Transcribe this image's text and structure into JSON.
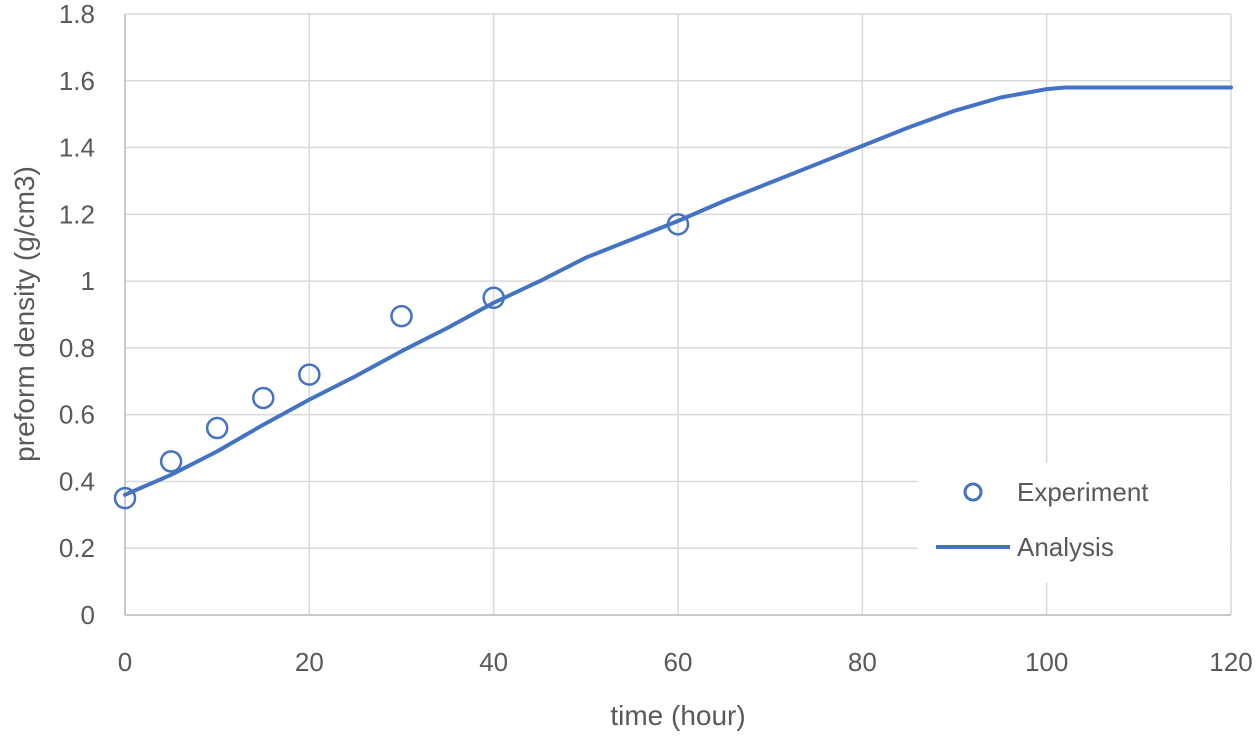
{
  "chart_data": {
    "type": "scatter",
    "title": "",
    "xlabel": "time (hour)",
    "ylabel": "preform density (g/cm3)",
    "xlim": [
      0,
      120
    ],
    "ylim": [
      0,
      1.8
    ],
    "x_ticks": [
      0,
      20,
      40,
      60,
      80,
      100,
      120
    ],
    "y_ticks": [
      0,
      0.2,
      0.4,
      0.6,
      0.8,
      1,
      1.2,
      1.4,
      1.6,
      1.8
    ],
    "x_tick_labels": [
      "0",
      "20",
      "40",
      "60",
      "80",
      "100",
      "120"
    ],
    "y_tick_labels": [
      "0",
      "0.2",
      "0.4",
      "0.6",
      "0.8",
      "1",
      "1.2",
      "1.4",
      "1.6",
      "1.8"
    ],
    "grid": true,
    "legend_position": "bottom-right",
    "series": [
      {
        "name": "Experiment",
        "kind": "scatter",
        "marker": "open-circle",
        "color": "#4472c4",
        "x": [
          0,
          5,
          10,
          15,
          20,
          30,
          40,
          60
        ],
        "y": [
          0.35,
          0.46,
          0.56,
          0.65,
          0.72,
          0.895,
          0.95,
          1.17
        ]
      },
      {
        "name": "Analysis",
        "kind": "line",
        "color": "#4472c4",
        "x": [
          0,
          5,
          10,
          15,
          20,
          25,
          30,
          35,
          40,
          45,
          50,
          55,
          60,
          65,
          70,
          75,
          80,
          85,
          90,
          95,
          100,
          102,
          120
        ],
        "y": [
          0.36,
          0.42,
          0.49,
          0.57,
          0.645,
          0.715,
          0.79,
          0.86,
          0.935,
          1.0,
          1.07,
          1.125,
          1.18,
          1.24,
          1.295,
          1.35,
          1.405,
          1.46,
          1.51,
          1.55,
          1.575,
          1.58,
          1.58
        ]
      }
    ]
  }
}
